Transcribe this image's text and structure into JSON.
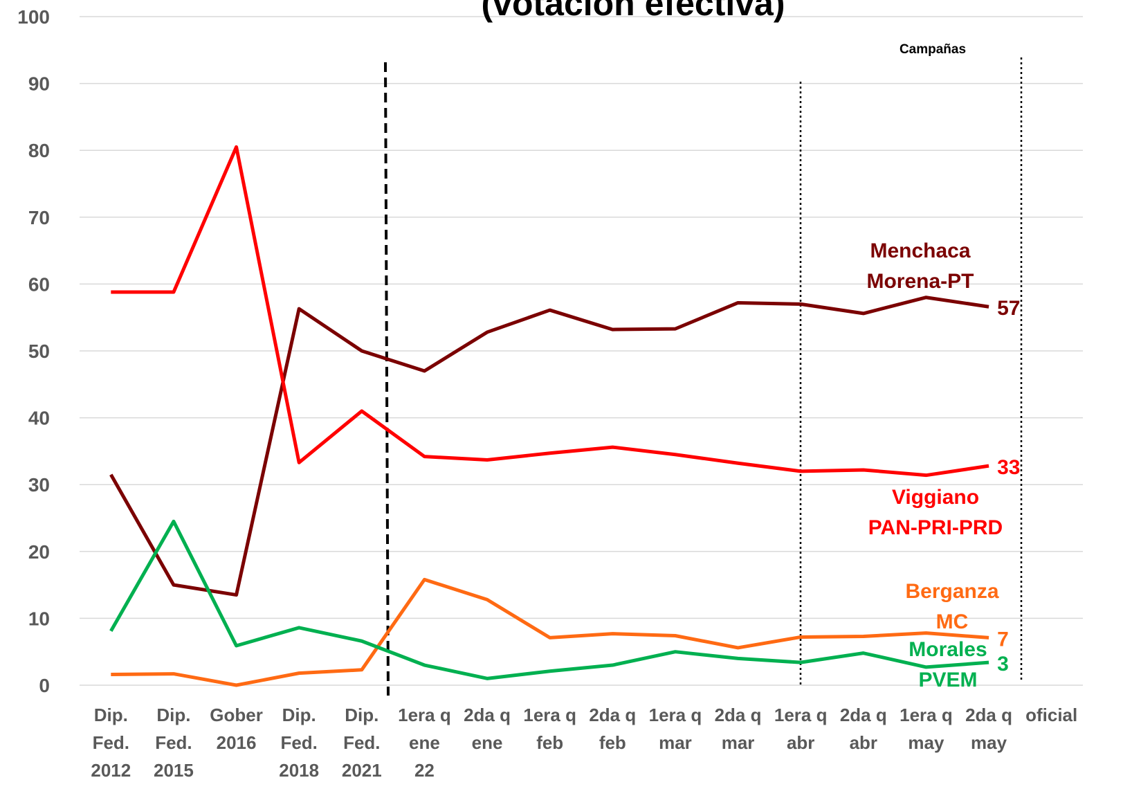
{
  "chart_data": {
    "type": "line",
    "title": "(votación efectiva)",
    "annotations": [
      "Campañas"
    ],
    "categories": [
      "Dip.\nFed.\n2012",
      "Dip.\nFed.\n2015",
      "Gober\n2016",
      "Dip.\nFed.\n2018",
      "Dip.\nFed.\n2021",
      "1era q\nene\n22",
      "2da q\nene",
      "1era q\nfeb",
      "2da q\nfeb",
      "1era q\nmar",
      "2da q\nmar",
      "1era q\nabr",
      "2da q\nabr",
      "1era q\nmay",
      "2da q\nmay",
      "oficial"
    ],
    "series": [
      {
        "name": "Menchaca\nMorena-PT",
        "color": "#7b0000",
        "values": [
          31.5,
          15,
          13.5,
          56.3,
          50,
          47,
          52.8,
          56.1,
          53.2,
          53.3,
          57.2,
          57,
          55.6,
          58,
          56.6,
          null
        ],
        "value_labels": [
          null,
          null,
          null,
          null,
          null,
          null,
          null,
          null,
          null,
          null,
          null,
          null,
          null,
          null,
          "57",
          null
        ]
      },
      {
        "name": "Viggiano\nPAN-PRI-PRD",
        "color": "#ff0000",
        "values": [
          58.8,
          58.8,
          80.5,
          33.3,
          41,
          34.2,
          33.7,
          34.7,
          35.6,
          34.5,
          33.2,
          32,
          32.2,
          31.4,
          32.8,
          null
        ],
        "value_labels": [
          null,
          null,
          null,
          null,
          null,
          null,
          null,
          null,
          null,
          null,
          null,
          null,
          null,
          null,
          "33",
          null
        ]
      },
      {
        "name": "Berganza\nMC",
        "color": "#ff6a13",
        "values": [
          1.6,
          1.7,
          0,
          1.8,
          2.3,
          15.8,
          12.8,
          7.1,
          7.7,
          7.4,
          5.6,
          7.2,
          7.3,
          7.8,
          7.1,
          null
        ],
        "value_labels": [
          null,
          null,
          null,
          null,
          null,
          null,
          null,
          null,
          null,
          null,
          null,
          null,
          null,
          null,
          "7",
          null
        ]
      },
      {
        "name": "Morales\nPVEM",
        "color": "#00b050",
        "values": [
          8.1,
          24.5,
          5.9,
          8.6,
          6.6,
          3,
          1,
          2.1,
          3,
          5,
          4,
          3.4,
          4.8,
          2.7,
          3.4,
          null
        ],
        "value_labels": [
          null,
          null,
          null,
          null,
          null,
          null,
          null,
          null,
          null,
          null,
          null,
          null,
          null,
          null,
          "3",
          null
        ]
      }
    ],
    "ylim": [
      0,
      100
    ],
    "yticks": [
      0,
      10,
      20,
      30,
      40,
      50,
      60,
      70,
      80,
      90,
      100
    ],
    "grid": true
  }
}
